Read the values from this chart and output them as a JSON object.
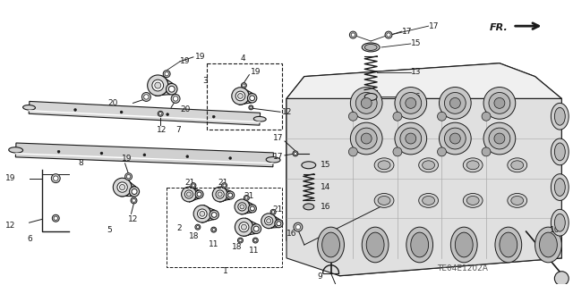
{
  "background_color": "#ffffff",
  "line_color": "#1a1a1a",
  "fig_width": 6.4,
  "fig_height": 3.19,
  "dpi": 100,
  "diagram_ref": "TE04E1202A",
  "gray": "#888888",
  "light_gray": "#cccccc",
  "mid_gray": "#aaaaaa"
}
